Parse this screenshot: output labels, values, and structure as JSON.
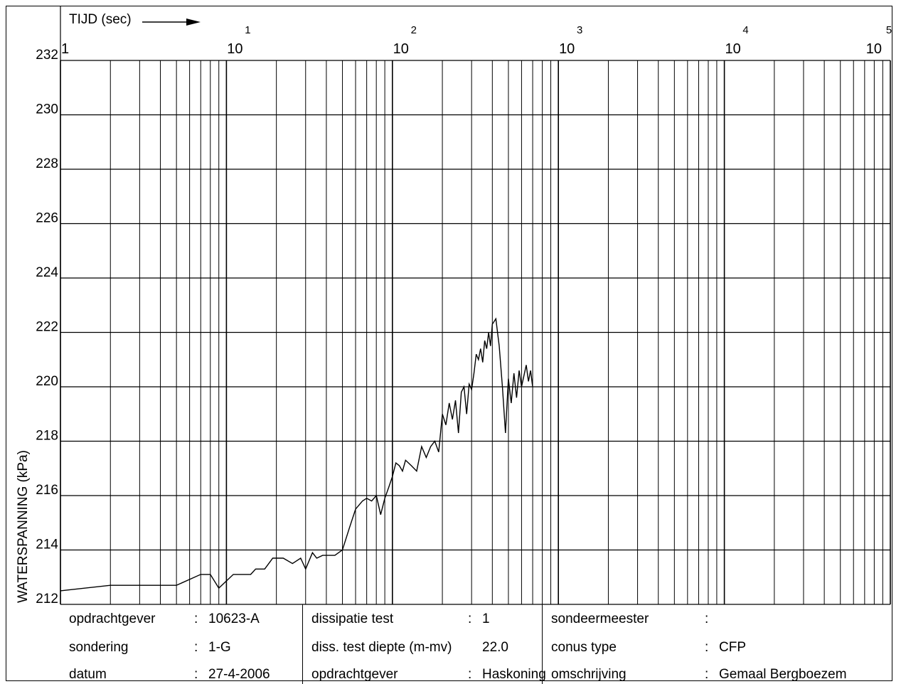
{
  "chart_data": {
    "type": "line",
    "xscale": "log",
    "xlabel": "TIJD (sec)",
    "ylabel": "WATERSPANNING (kPa)",
    "xlim": [
      1,
      100000
    ],
    "ylim": [
      212,
      232
    ],
    "x_ticks": [
      {
        "base": "1",
        "exp": ""
      },
      {
        "base": "10",
        "exp": "1"
      },
      {
        "base": "10",
        "exp": "2"
      },
      {
        "base": "10",
        "exp": "3"
      },
      {
        "base": "10",
        "exp": "4"
      },
      {
        "base": "10",
        "exp": "5"
      }
    ],
    "y_ticks": [
      "212",
      "214",
      "216",
      "218",
      "220",
      "222",
      "224",
      "226",
      "228",
      "230",
      "232"
    ],
    "grid": true,
    "series": [
      {
        "x": [
          1,
          2,
          5,
          7,
          8,
          9,
          11,
          14,
          15,
          17,
          19,
          22,
          25,
          28,
          30,
          33,
          35,
          38,
          40,
          45,
          50,
          55,
          60,
          66,
          70,
          75,
          80,
          85,
          90,
          95,
          100,
          105,
          110,
          115,
          120,
          130,
          140,
          150,
          160,
          170,
          180,
          190,
          200,
          210,
          220,
          230,
          240,
          250,
          260,
          270,
          280,
          290,
          300,
          310,
          320,
          330,
          340,
          350,
          360,
          370,
          380,
          390,
          400,
          420,
          440,
          460,
          480,
          500,
          520,
          540,
          560,
          580,
          600,
          620,
          640,
          660,
          680,
          700
        ],
        "y": [
          212.5,
          212.7,
          212.7,
          213.1,
          213.1,
          212.6,
          213.1,
          213.1,
          213.3,
          213.3,
          213.7,
          213.7,
          213.5,
          213.7,
          213.3,
          213.9,
          213.7,
          213.8,
          213.8,
          213.8,
          214.0,
          214.8,
          215.5,
          215.8,
          215.9,
          215.8,
          216.0,
          215.3,
          215.9,
          216.3,
          216.7,
          217.2,
          217.1,
          216.9,
          217.3,
          217.1,
          216.9,
          217.8,
          217.4,
          217.8,
          218.0,
          217.6,
          219.0,
          218.6,
          219.4,
          218.8,
          219.5,
          218.3,
          219.8,
          220.0,
          219.0,
          220.1,
          219.9,
          220.5,
          221.2,
          221.0,
          221.4,
          220.9,
          221.7,
          221.4,
          222.0,
          221.5,
          222.3,
          222.5,
          221.5,
          220.0,
          218.3,
          220.3,
          219.4,
          220.5,
          219.6,
          220.6,
          220.0,
          220.4,
          220.8,
          220.2,
          220.6,
          220.0
        ]
      }
    ]
  },
  "info": {
    "col1": [
      {
        "label": "opdrachtgever",
        "sep": ":",
        "value": "10623-A"
      },
      {
        "label": "sondering",
        "sep": ":",
        "value": "1-G"
      },
      {
        "label": "datum",
        "sep": ":",
        "value": "27-4-2006"
      }
    ],
    "col2": [
      {
        "label": "dissipatie test",
        "sep": ":",
        "value": "1"
      },
      {
        "label": "diss. test diepte (m-mv)",
        "sep": "",
        "value": "22.0"
      },
      {
        "label": "opdrachtgever",
        "sep": ":",
        "value": "Haskoning"
      }
    ],
    "col3": [
      {
        "label": "sondeermeester",
        "sep": ":",
        "value": ""
      },
      {
        "label": "conus type",
        "sep": ":",
        "value": "CFP"
      },
      {
        "label": "omschrijving",
        "sep": ":",
        "value": "Gemaal Bergboezem"
      }
    ]
  }
}
